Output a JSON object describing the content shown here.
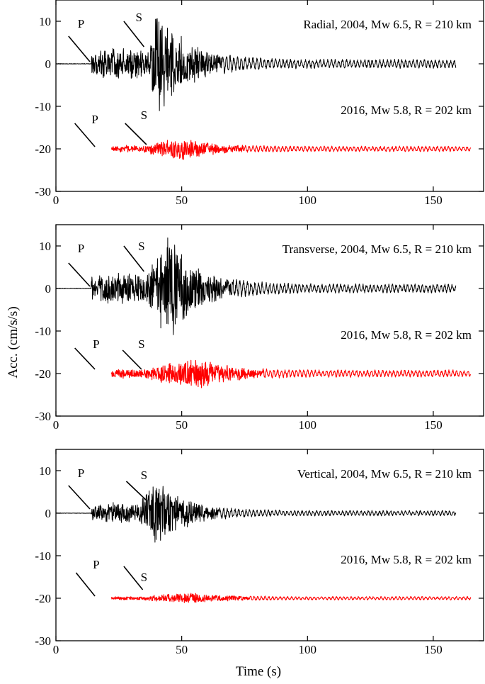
{
  "figure": {
    "xlabel": "Time (s)",
    "ylabel": "Acc. (cm/s/s)",
    "colors": {
      "event_2004": "#000000",
      "event_2016": "#ff0000",
      "axes": "#000000"
    }
  },
  "chart_data": [
    {
      "type": "line",
      "component": "radial",
      "xlim": [
        0,
        170
      ],
      "ylim": [
        -30,
        15
      ],
      "xticks": [
        0,
        50,
        100,
        150
      ],
      "yticks": [
        10,
        0,
        -10,
        -20,
        -30
      ],
      "series": [
        {
          "name": "Radial, 2004, Mw 6.5, R = 210 km",
          "color": "#000000",
          "baseline": 0,
          "x_start": 0,
          "x_end": 159,
          "p_onset": 14,
          "s_onset": 37,
          "peak_time": 41,
          "peak_amplitude": 14,
          "coda_amplitude": 1
        },
        {
          "name": "2016, Mw 5.8, R = 202 km",
          "color": "#ff0000",
          "baseline": -20,
          "x_start": 22,
          "x_end": 165,
          "p_onset": 22,
          "s_onset": 35,
          "peak_time": 50,
          "peak_amplitude": 3,
          "coda_amplitude": 0.6
        }
      ],
      "annotations": [
        {
          "text": "P",
          "x": 10,
          "y": 8.5
        },
        {
          "text": "S",
          "x": 33,
          "y": 10
        },
        {
          "text": "P",
          "x": 15.5,
          "y": -14
        },
        {
          "text": "S",
          "x": 35,
          "y": -13
        }
      ],
      "phase_markers": [
        {
          "x1": 5,
          "y1": 6.5,
          "x2": 13.5,
          "y2": 0.5
        },
        {
          "x1": 27,
          "y1": 10,
          "x2": 35,
          "y2": 4
        },
        {
          "x1": 7.5,
          "y1": -14,
          "x2": 15.5,
          "y2": -19.5
        },
        {
          "x1": 27.5,
          "y1": -14,
          "x2": 36,
          "y2": -19
        }
      ]
    },
    {
      "type": "line",
      "component": "transverse",
      "xlim": [
        0,
        170
      ],
      "ylim": [
        -30,
        15
      ],
      "xticks": [
        0,
        50,
        100,
        150
      ],
      "yticks": [
        10,
        0,
        -10,
        -20,
        -30
      ],
      "series": [
        {
          "name": "Transverse, 2004, Mw 6.5, R = 210 km",
          "color": "#000000",
          "baseline": 0,
          "x_start": 0,
          "x_end": 159,
          "p_onset": 14,
          "s_onset": 36,
          "peak_time": 45,
          "peak_amplitude": 14,
          "coda_amplitude": 1
        },
        {
          "name": "2016, Mw 5.8, R = 202 km",
          "color": "#ff0000",
          "baseline": -20,
          "x_start": 22,
          "x_end": 165,
          "p_onset": 22,
          "s_onset": 35,
          "peak_time": 57,
          "peak_amplitude": 4,
          "coda_amplitude": 0.8
        }
      ],
      "annotations": [
        {
          "text": "P",
          "x": 10,
          "y": 8.5
        },
        {
          "text": "S",
          "x": 34,
          "y": 9
        },
        {
          "text": "P",
          "x": 16,
          "y": -14
        },
        {
          "text": "S",
          "x": 34,
          "y": -14
        }
      ],
      "phase_markers": [
        {
          "x1": 5,
          "y1": 6,
          "x2": 13.5,
          "y2": 0.5
        },
        {
          "x1": 27,
          "y1": 10,
          "x2": 35,
          "y2": 4
        },
        {
          "x1": 7.5,
          "y1": -14,
          "x2": 15.5,
          "y2": -19
        },
        {
          "x1": 26.5,
          "y1": -14.5,
          "x2": 34,
          "y2": -19
        }
      ]
    },
    {
      "type": "line",
      "component": "vertical",
      "xlim": [
        0,
        170
      ],
      "ylim": [
        -30,
        15
      ],
      "xticks": [
        0,
        50,
        100,
        150
      ],
      "yticks": [
        10,
        0,
        -10,
        -20,
        -30
      ],
      "series": [
        {
          "name": "Vertical, 2004, Mw 6.5, R = 210 km",
          "color": "#000000",
          "baseline": 0,
          "x_start": 0,
          "x_end": 159,
          "p_onset": 14,
          "s_onset": 33,
          "peak_time": 40,
          "peak_amplitude": 9,
          "coda_amplitude": 0.6
        },
        {
          "name": "2016, Mw 5.8, R = 202 km",
          "color": "#ff0000",
          "baseline": -20,
          "x_start": 22,
          "x_end": 165,
          "p_onset": 22,
          "s_onset": 35,
          "peak_time": 52,
          "peak_amplitude": 1.5,
          "coda_amplitude": 0.4
        }
      ],
      "annotations": [
        {
          "text": "P",
          "x": 10,
          "y": 8.5
        },
        {
          "text": "S",
          "x": 35,
          "y": 8
        },
        {
          "text": "P",
          "x": 16,
          "y": -13
        },
        {
          "text": "S",
          "x": 35,
          "y": -16
        }
      ],
      "phase_markers": [
        {
          "x1": 5,
          "y1": 6.5,
          "x2": 13.5,
          "y2": 1
        },
        {
          "x1": 28,
          "y1": 7.5,
          "x2": 36,
          "y2": 3
        },
        {
          "x1": 8,
          "y1": -14,
          "x2": 15.5,
          "y2": -19.5
        },
        {
          "x1": 27,
          "y1": -12.5,
          "x2": 34.5,
          "y2": -18
        }
      ]
    }
  ]
}
